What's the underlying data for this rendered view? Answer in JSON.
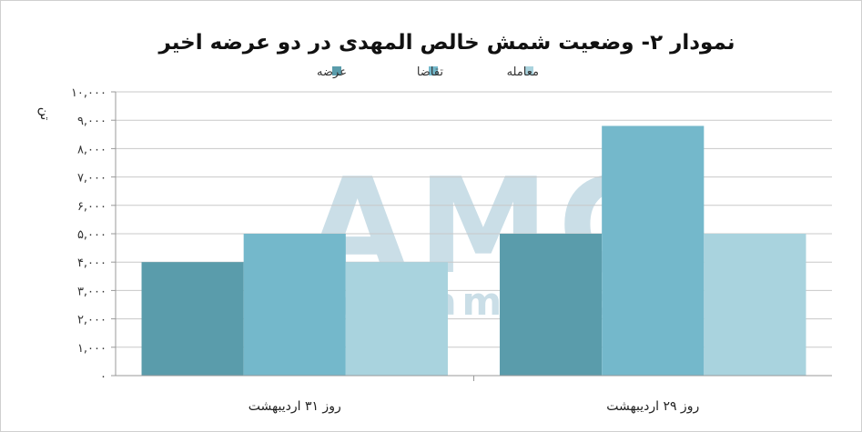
{
  "chart_data": {
    "type": "bar",
    "title": "نمودار ۲- وضعیت شمش خالص المهدی در دو عرضه اخیر",
    "ylabel": "تن",
    "categories": [
      "روز ۳۱ اردیبهشت",
      "روز ۲۹ اردیبهشت"
    ],
    "series": [
      {
        "name": "عرضه",
        "values": [
          4000,
          5000
        ],
        "color": "#5a9cab"
      },
      {
        "name": "تقاضا",
        "values": [
          5000,
          8800
        ],
        "color": "#74b8cb"
      },
      {
        "name": "معامله",
        "values": [
          4000,
          5000
        ],
        "color": "#a9d3de"
      }
    ],
    "ylim": [
      0,
      10000
    ],
    "yticks": [
      0,
      1000,
      2000,
      3000,
      4000,
      5000,
      6000,
      7000,
      8000,
      9000,
      10000
    ],
    "ytick_labels": [
      "۰",
      "۱,۰۰۰",
      "۲,۰۰۰",
      "۳,۰۰۰",
      "۴,۰۰۰",
      "۵,۰۰۰",
      "۶,۰۰۰",
      "۷,۰۰۰",
      "۸,۰۰۰",
      "۹,۰۰۰",
      "۱۰,۰۰۰"
    ],
    "grid": true,
    "legend_position": "top-center"
  },
  "watermark": {
    "logo_text": "AMC",
    "url_text": "www.amc-co.ir"
  }
}
